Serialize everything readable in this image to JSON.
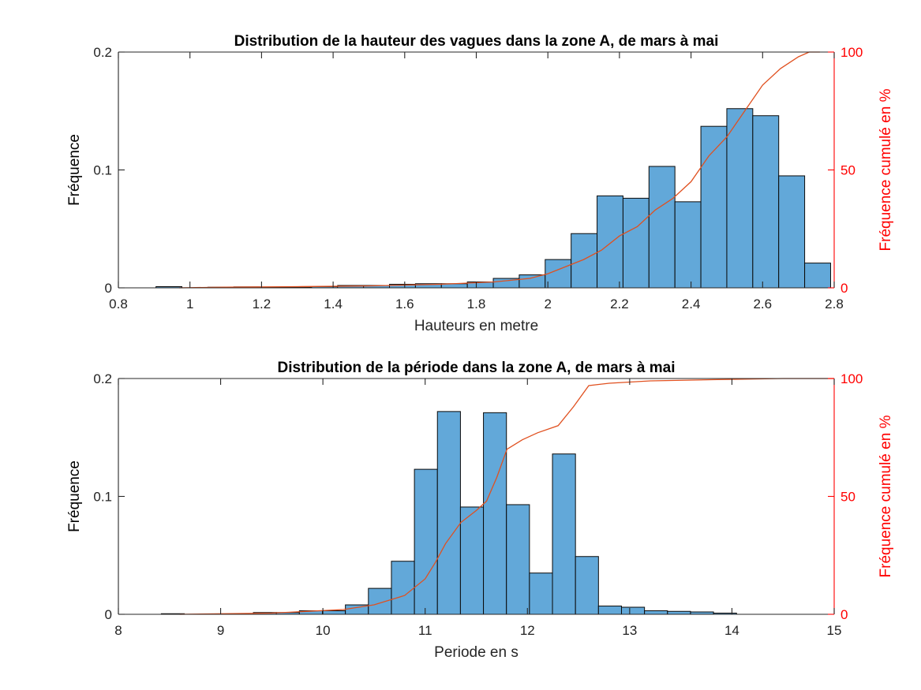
{
  "chart_data": [
    {
      "type": "bar",
      "title": "Distribution de la hauteur des vagues dans la zone A, de mars à mai",
      "xlabel": "Hauteurs en metre",
      "ylabel": "Fréquence",
      "y2label": "Fréquence cumulé en %",
      "xlim": [
        0.8,
        2.8
      ],
      "ylim": [
        0,
        0.2
      ],
      "y2lim": [
        0,
        100
      ],
      "xticks": [
        0.8,
        1,
        1.2,
        1.4,
        1.6,
        1.8,
        2,
        2.2,
        2.4,
        2.6,
        2.8
      ],
      "xtick_labels": [
        "0.8",
        "1",
        "1.2",
        "1.4",
        "1.6",
        "1.8",
        "2",
        "2.2",
        "2.4",
        "2.6",
        "2.8"
      ],
      "yticks": [
        0,
        0.1,
        0.2
      ],
      "ytick_labels": [
        "0",
        "0.1",
        "0.2"
      ],
      "y2ticks": [
        0,
        50,
        100
      ],
      "y2tick_labels": [
        "0",
        "50",
        "100"
      ],
      "bin_width": 0.0725,
      "bin_edges_start": 0.905,
      "values": [
        0.001,
        0.0,
        0.0005,
        0.0008,
        0.0005,
        0.0004,
        0.001,
        0.002,
        0.002,
        0.003,
        0.0035,
        0.0035,
        0.005,
        0.008,
        0.011,
        0.024,
        0.046,
        0.078,
        0.076,
        0.103,
        0.073,
        0.137,
        0.152,
        0.146,
        0.095,
        0.021
      ],
      "cumulative": {
        "x": [
          0.97,
          1.1,
          1.3,
          1.5,
          1.7,
          1.85,
          1.95,
          2.0,
          2.05,
          2.1,
          2.15,
          2.2,
          2.25,
          2.3,
          2.35,
          2.4,
          2.45,
          2.5,
          2.55,
          2.6,
          2.65,
          2.7,
          2.73,
          2.76
        ],
        "y": [
          0,
          0.3,
          0.5,
          0.8,
          1.5,
          2.5,
          4,
          6,
          9,
          12,
          16,
          22,
          26,
          33,
          38,
          45,
          56,
          64,
          75,
          86,
          93,
          98,
          100,
          100
        ]
      }
    },
    {
      "type": "bar",
      "title": "Distribution de la période dans la zone A, de mars à mai",
      "xlabel": "Periode en s",
      "ylabel": "Fréquence",
      "y2label": "Fréquence cumulé en %",
      "xlim": [
        8,
        15
      ],
      "ylim": [
        0,
        0.2
      ],
      "y2lim": [
        0,
        100
      ],
      "xticks": [
        8,
        9,
        10,
        11,
        12,
        13,
        14,
        15
      ],
      "xtick_labels": [
        "8",
        "9",
        "10",
        "11",
        "12",
        "13",
        "14",
        "15"
      ],
      "yticks": [
        0,
        0.1,
        0.2
      ],
      "ytick_labels": [
        "0",
        "0.1",
        "0.2"
      ],
      "y2ticks": [
        0,
        50,
        100
      ],
      "y2tick_labels": [
        "0",
        "50",
        "100"
      ],
      "bin_width": 0.225,
      "bin_edges_start": 8.42,
      "values": [
        0.0005,
        0.0,
        0.0,
        0.0,
        0.0015,
        0.0015,
        0.003,
        0.003,
        0.008,
        0.022,
        0.045,
        0.123,
        0.172,
        0.091,
        0.171,
        0.093,
        0.035,
        0.136,
        0.049,
        0.007,
        0.006,
        0.003,
        0.0025,
        0.002,
        0.001
      ],
      "cumulative": {
        "x": [
          8.6,
          9.5,
          10.2,
          10.5,
          10.8,
          11.0,
          11.1,
          11.2,
          11.35,
          11.5,
          11.6,
          11.7,
          11.8,
          11.95,
          12.1,
          12.3,
          12.45,
          12.6,
          12.8,
          13.2,
          13.8,
          14.5,
          15.0
        ],
        "y": [
          0,
          0.5,
          2,
          4,
          8,
          15,
          22,
          30,
          39,
          44,
          48,
          58,
          70,
          74,
          77,
          80,
          88,
          97,
          98,
          99,
          99.5,
          100,
          100
        ]
      }
    }
  ]
}
